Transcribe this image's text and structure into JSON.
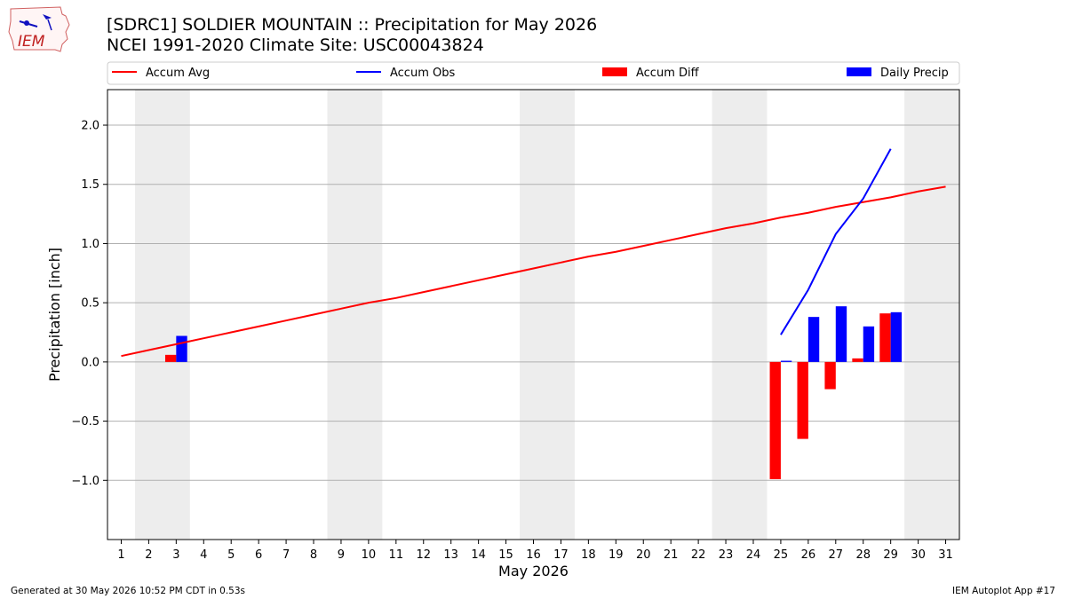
{
  "header": {
    "title_line1": "[SDRC1] SOLDIER MOUNTAIN :: Precipitation for May 2026",
    "title_line2": "NCEI 1991-2020 Climate Site: USC00043824",
    "logo_text": "IEM"
  },
  "footer": {
    "generated": "Generated at 30 May 2026 10:52 PM CDT in 0.53s",
    "app": "IEM Autoplot App #17"
  },
  "colors": {
    "avg": "#ff0000",
    "obs": "#0000ff",
    "diff": "#ff0000",
    "precip": "#0000ff",
    "weekend": "#ededed",
    "grid": "#b0b0b0"
  },
  "chart_data": {
    "type": "bar",
    "xlabel": "May 2026",
    "ylabel": "Precipitation [inch]",
    "xlim": [
      0.5,
      31.5
    ],
    "ylim": [
      -1.5,
      2.3
    ],
    "grid": "horizontal",
    "legend_position": "top",
    "legend": [
      "Accum Avg",
      "Accum Obs",
      "Accum Diff",
      "Daily Precip"
    ],
    "days": [
      1,
      2,
      3,
      4,
      5,
      6,
      7,
      8,
      9,
      10,
      11,
      12,
      13,
      14,
      15,
      16,
      17,
      18,
      19,
      20,
      21,
      22,
      23,
      24,
      25,
      26,
      27,
      28,
      29,
      30,
      31
    ],
    "yticks": [
      -1.0,
      -0.5,
      0.0,
      0.5,
      1.0,
      1.5,
      2.0
    ],
    "ytick_labels": [
      "−1.0",
      "−0.5",
      "0.0",
      "0.5",
      "1.0",
      "1.5",
      "2.0"
    ],
    "weekend_spans": [
      [
        1.5,
        3.5
      ],
      [
        8.5,
        10.5
      ],
      [
        15.5,
        17.5
      ],
      [
        22.5,
        24.5
      ],
      [
        29.5,
        31.5
      ]
    ],
    "series": [
      {
        "name": "Accum Avg",
        "kind": "line",
        "x": [
          1,
          2,
          3,
          4,
          5,
          6,
          7,
          8,
          9,
          10,
          11,
          12,
          13,
          14,
          15,
          16,
          17,
          18,
          19,
          20,
          21,
          22,
          23,
          24,
          25,
          26,
          27,
          28,
          29,
          30,
          31
        ],
        "values": [
          0.05,
          0.1,
          0.15,
          0.2,
          0.25,
          0.3,
          0.35,
          0.4,
          0.45,
          0.5,
          0.54,
          0.59,
          0.64,
          0.69,
          0.74,
          0.79,
          0.84,
          0.89,
          0.93,
          0.98,
          1.03,
          1.08,
          1.13,
          1.17,
          1.22,
          1.26,
          1.31,
          1.35,
          1.39,
          1.44,
          1.48
        ]
      },
      {
        "name": "Accum Obs",
        "kind": "line",
        "x": [
          25,
          26,
          27,
          28,
          29
        ],
        "values": [
          0.23,
          0.61,
          1.08,
          1.38,
          1.8
        ]
      },
      {
        "name": "Accum Diff",
        "kind": "bar",
        "x": [
          3,
          25,
          26,
          27,
          28,
          29
        ],
        "values": [
          0.06,
          -0.99,
          -0.65,
          -0.23,
          0.03,
          0.41
        ]
      },
      {
        "name": "Daily Precip",
        "kind": "bar",
        "x": [
          3,
          25,
          26,
          27,
          28,
          29
        ],
        "values": [
          0.22,
          0.01,
          0.38,
          0.47,
          0.3,
          0.42
        ]
      }
    ]
  }
}
